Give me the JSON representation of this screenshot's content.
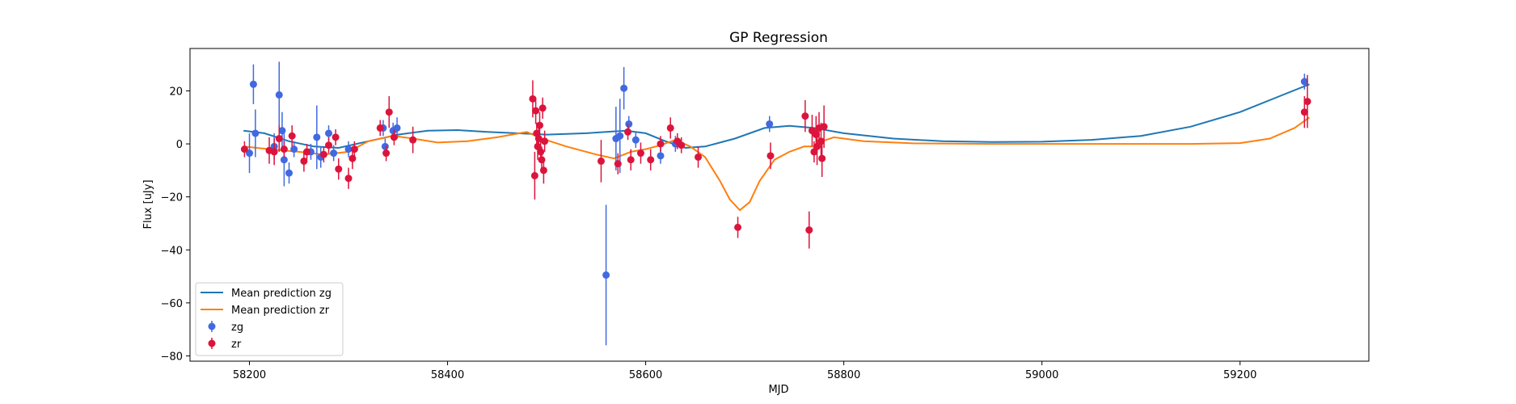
{
  "chart_data": {
    "type": "scatter",
    "title": "GP Regression",
    "xlabel": "MJD",
    "ylabel": "Flux [uJy]",
    "xlim": [
      58140,
      59330
    ],
    "ylim": [
      -82,
      36
    ],
    "x_ticks": [
      58200,
      58400,
      58600,
      58800,
      59000,
      59200
    ],
    "y_ticks": [
      -80,
      -60,
      -40,
      -20,
      0,
      20
    ],
    "grid": false,
    "legend_position": "lower-left",
    "colors": {
      "zg_line": "#1f77b4",
      "zr_line": "#ff7f0e",
      "zg_points": "#4169e1",
      "zr_points": "#dc143c"
    },
    "series": [
      {
        "name": "Mean prediction zg",
        "kind": "line",
        "points": [
          [
            58194,
            5
          ],
          [
            58215,
            4
          ],
          [
            58240,
            1
          ],
          [
            58265,
            -1
          ],
          [
            58290,
            -1.5
          ],
          [
            58320,
            1
          ],
          [
            58350,
            3.5
          ],
          [
            58380,
            5
          ],
          [
            58410,
            5.2
          ],
          [
            58440,
            4.5
          ],
          [
            58470,
            4
          ],
          [
            58500,
            3.5
          ],
          [
            58540,
            4
          ],
          [
            58580,
            5
          ],
          [
            58600,
            4
          ],
          [
            58620,
            1
          ],
          [
            58640,
            -1.5
          ],
          [
            58660,
            -1
          ],
          [
            58690,
            2
          ],
          [
            58720,
            6
          ],
          [
            58745,
            6.8
          ],
          [
            58770,
            6
          ],
          [
            58800,
            4
          ],
          [
            58850,
            2
          ],
          [
            58900,
            1
          ],
          [
            58950,
            0.7
          ],
          [
            59000,
            0.8
          ],
          [
            59050,
            1.5
          ],
          [
            59100,
            3
          ],
          [
            59150,
            6.5
          ],
          [
            59200,
            12
          ],
          [
            59240,
            18
          ],
          [
            59270,
            22.5
          ]
        ]
      },
      {
        "name": "Mean prediction zr",
        "kind": "line",
        "points": [
          [
            58194,
            -1
          ],
          [
            58220,
            -2
          ],
          [
            58250,
            -3
          ],
          [
            58275,
            -4
          ],
          [
            58300,
            -3
          ],
          [
            58320,
            1
          ],
          [
            58345,
            3
          ],
          [
            58365,
            2
          ],
          [
            58390,
            0.5
          ],
          [
            58420,
            1
          ],
          [
            58450,
            2.5
          ],
          [
            58480,
            4.5
          ],
          [
            58495,
            2
          ],
          [
            58520,
            -1
          ],
          [
            58550,
            -4
          ],
          [
            58568,
            -5.5
          ],
          [
            58585,
            -3
          ],
          [
            58600,
            -2
          ],
          [
            58615,
            -0.5
          ],
          [
            58630,
            1.5
          ],
          [
            58645,
            -1
          ],
          [
            58660,
            -5
          ],
          [
            58675,
            -14
          ],
          [
            58685,
            -21
          ],
          [
            58695,
            -25
          ],
          [
            58705,
            -22
          ],
          [
            58715,
            -14
          ],
          [
            58730,
            -6
          ],
          [
            58745,
            -3
          ],
          [
            58760,
            -1
          ],
          [
            58770,
            -1
          ],
          [
            58778,
            1
          ],
          [
            58790,
            2.5
          ],
          [
            58820,
            1
          ],
          [
            58870,
            0.2
          ],
          [
            58950,
            0
          ],
          [
            59050,
            0
          ],
          [
            59150,
            0
          ],
          [
            59200,
            0.3
          ],
          [
            59230,
            2
          ],
          [
            59255,
            6
          ],
          [
            59270,
            10
          ]
        ]
      },
      {
        "name": "zg",
        "kind": "errorbar",
        "points": [
          [
            58200,
            -3.5,
            7.5
          ],
          [
            58204,
            22.5,
            7.5
          ],
          [
            58206,
            4,
            9
          ],
          [
            58225,
            -1,
            5
          ],
          [
            58230,
            18.5,
            12.5
          ],
          [
            58233,
            5,
            7
          ],
          [
            58235,
            -6,
            10
          ],
          [
            58240,
            -11,
            4
          ],
          [
            58245,
            -2,
            3
          ],
          [
            58262,
            -3,
            3
          ],
          [
            58268,
            2.5,
            12
          ],
          [
            58272,
            -5,
            4
          ],
          [
            58280,
            4,
            3
          ],
          [
            58285,
            -3.5,
            3
          ],
          [
            58300,
            -2,
            3
          ],
          [
            58335,
            6,
            3
          ],
          [
            58337,
            -1,
            3
          ],
          [
            58345,
            5,
            3
          ],
          [
            58349,
            6,
            4
          ],
          [
            58560,
            -49.5,
            26.5
          ],
          [
            58570,
            2,
            12
          ],
          [
            58574,
            3,
            14
          ],
          [
            58578,
            21,
            8
          ],
          [
            58583,
            7.5,
            3
          ],
          [
            58590,
            1.5,
            3
          ],
          [
            58615,
            -4.5,
            3
          ],
          [
            58630,
            0,
            3
          ],
          [
            58725,
            7.5,
            3
          ],
          [
            59265,
            23.5,
            3
          ]
        ]
      },
      {
        "name": "zr",
        "kind": "errorbar",
        "points": [
          [
            58195,
            -2,
            3
          ],
          [
            58220,
            -2.5,
            5
          ],
          [
            58225,
            -3,
            5
          ],
          [
            58230,
            2,
            5
          ],
          [
            58235,
            -2,
            3
          ],
          [
            58243,
            3,
            4
          ],
          [
            58255,
            -6.5,
            4
          ],
          [
            58258,
            -3,
            3
          ],
          [
            58275,
            -4,
            3
          ],
          [
            58280,
            -0.5,
            3
          ],
          [
            58287,
            2.5,
            3
          ],
          [
            58290,
            -9.5,
            4
          ],
          [
            58300,
            -13,
            4
          ],
          [
            58304,
            -5.5,
            4
          ],
          [
            58306,
            -2,
            3
          ],
          [
            58332,
            6,
            3
          ],
          [
            58338,
            -3.5,
            3
          ],
          [
            58341,
            12,
            6
          ],
          [
            58346,
            2.5,
            3
          ],
          [
            58365,
            1.5,
            5
          ],
          [
            58486,
            17,
            7
          ],
          [
            58488,
            -12,
            9
          ],
          [
            58489,
            12.5,
            5
          ],
          [
            58490,
            4,
            4
          ],
          [
            58491,
            -1,
            5
          ],
          [
            58492,
            2,
            5
          ],
          [
            58493,
            7,
            5
          ],
          [
            58494,
            -3,
            4
          ],
          [
            58495,
            -6,
            5
          ],
          [
            58496,
            13.5,
            4
          ],
          [
            58497,
            -10,
            5
          ],
          [
            58498,
            1,
            4
          ],
          [
            58555,
            -6.5,
            8
          ],
          [
            58572,
            -7.5,
            4
          ],
          [
            58582,
            4.5,
            3
          ],
          [
            58585,
            -6,
            4
          ],
          [
            58595,
            -3.5,
            4
          ],
          [
            58605,
            -6,
            4
          ],
          [
            58615,
            0,
            3
          ],
          [
            58625,
            6,
            4
          ],
          [
            58632,
            1,
            3
          ],
          [
            58636,
            -0.5,
            3
          ],
          [
            58653,
            -5,
            4
          ],
          [
            58693,
            -31.5,
            4
          ],
          [
            58726,
            -4.5,
            5
          ],
          [
            58761,
            10.5,
            6
          ],
          [
            58765,
            -32.5,
            7
          ],
          [
            58768,
            5,
            6
          ],
          [
            58770,
            -3,
            4
          ],
          [
            58772,
            3.5,
            7
          ],
          [
            58773,
            -1,
            7
          ],
          [
            58775,
            6,
            6
          ],
          [
            58777,
            1,
            7
          ],
          [
            58778,
            -5.5,
            7
          ],
          [
            58780,
            6.5,
            8
          ],
          [
            59265,
            12,
            6
          ],
          [
            59268,
            16,
            10
          ]
        ]
      }
    ],
    "legend": [
      {
        "label": "Mean prediction zg",
        "kind": "line",
        "color": "#1f77b4"
      },
      {
        "label": "Mean prediction zr",
        "kind": "line",
        "color": "#ff7f0e"
      },
      {
        "label": "zg",
        "kind": "errorbar",
        "color": "#4169e1"
      },
      {
        "label": "zr",
        "kind": "errorbar",
        "color": "#dc143c"
      }
    ]
  }
}
